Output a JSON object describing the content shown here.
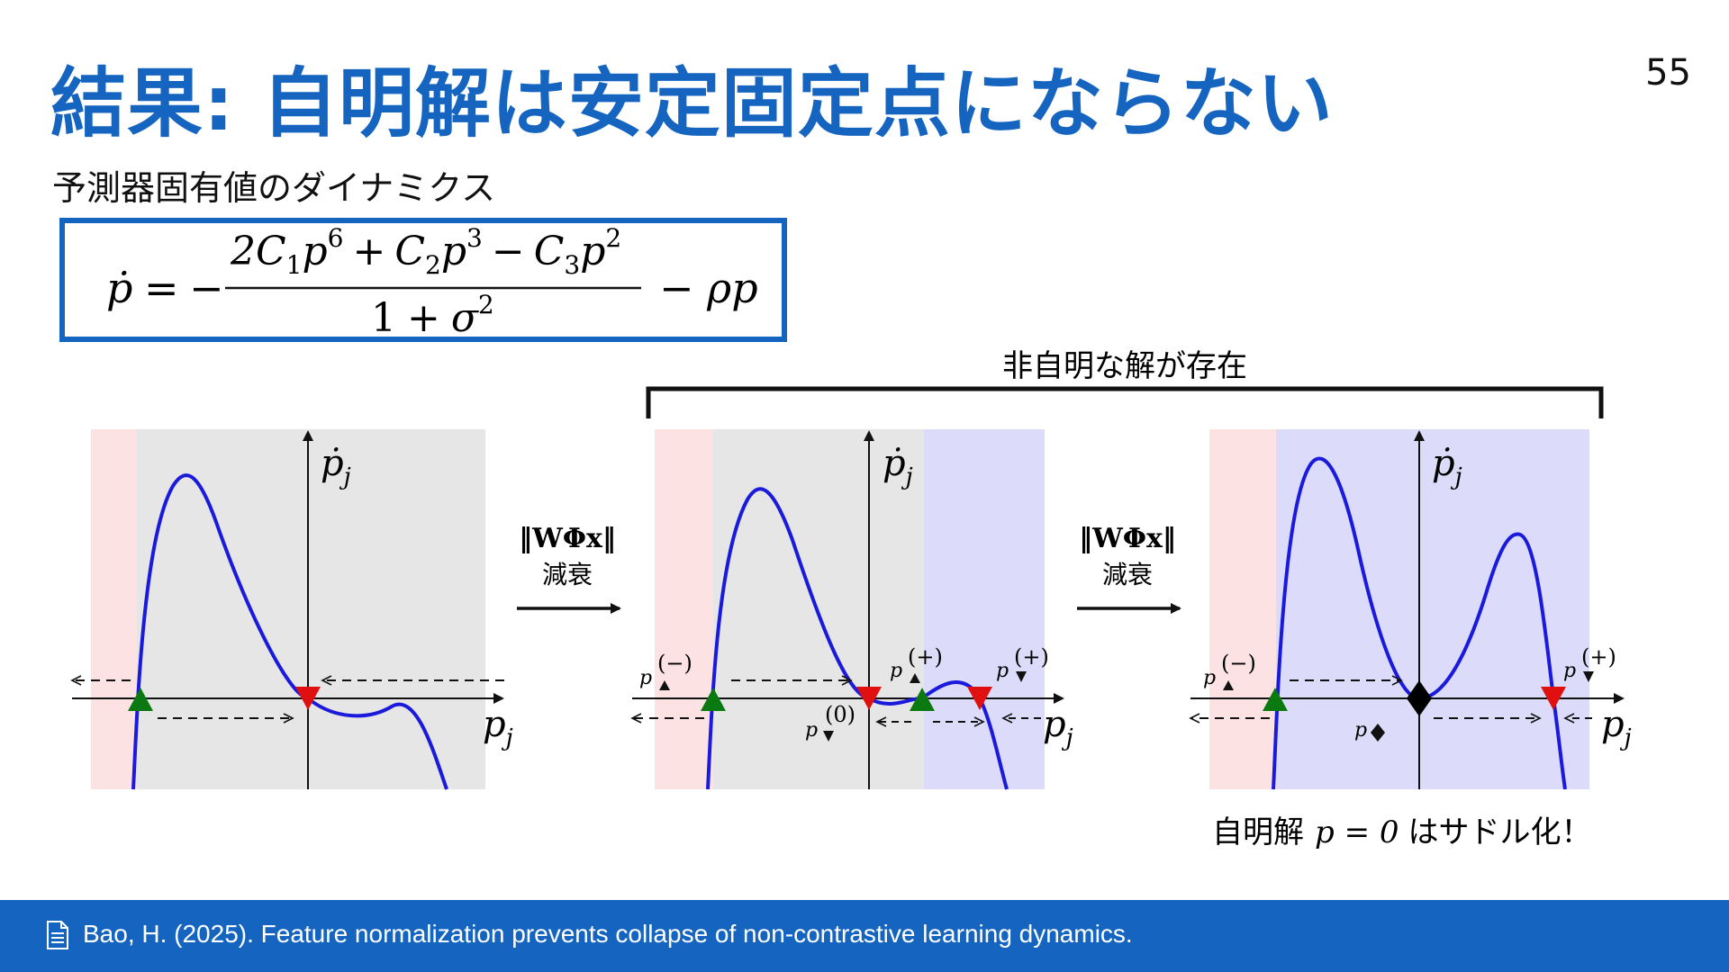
{
  "header": {
    "title": "結果: 自明解は安定固定点にならない",
    "page_number": "55",
    "subtitle": "予測器固有値のダイナミクス"
  },
  "equation": {
    "lhs": "ṗ",
    "equals": "=",
    "minus": "−",
    "numerator": {
      "t1_coef": "2C",
      "t1_sub": "1",
      "t1_var": "p",
      "t1_exp": "6",
      "op1": "+",
      "t2_coef": "C",
      "t2_sub": "2",
      "t2_var": "p",
      "t2_exp": "3",
      "op2": "−",
      "t3_coef": "C",
      "t3_sub": "3",
      "t3_var": "p",
      "t3_exp": "2"
    },
    "denominator": {
      "one": "1",
      "plus": "+",
      "sigma": "σ",
      "exp": "2"
    },
    "tail": "− ρp"
  },
  "bracket_label": "非自明な解が存在",
  "transitions": [
    {
      "norm_label": "‖WΦx‖",
      "caption": "減衰"
    },
    {
      "norm_label": "‖WΦx‖",
      "caption": "減衰"
    }
  ],
  "axes": {
    "x_label": "p",
    "x_sub": "j",
    "y_label": "ṗ",
    "y_sub": "j"
  },
  "fixed_point_labels": {
    "minus": "(−)",
    "zero": "(0)",
    "plus": "(+)",
    "p": "p"
  },
  "bottom_caption": {
    "prefix": "自明解",
    "math": "p = 0",
    "suffix": "はサドル化！"
  },
  "footer": {
    "citation": "Bao, H. (2025). Feature normalization prevents collapse of non-contrastive learning dynamics."
  },
  "colors": {
    "title_blue": "#1565c0",
    "curve_blue": "#1a1adc",
    "stable_green": "#0a7a10",
    "unstable_red": "#e01010",
    "saddle_black": "#000000",
    "region_pink": "#fde2e4",
    "region_gray": "#e6e6e6",
    "region_blue": "#dcdcfa"
  },
  "icons": {
    "footer": "document-icon"
  }
}
